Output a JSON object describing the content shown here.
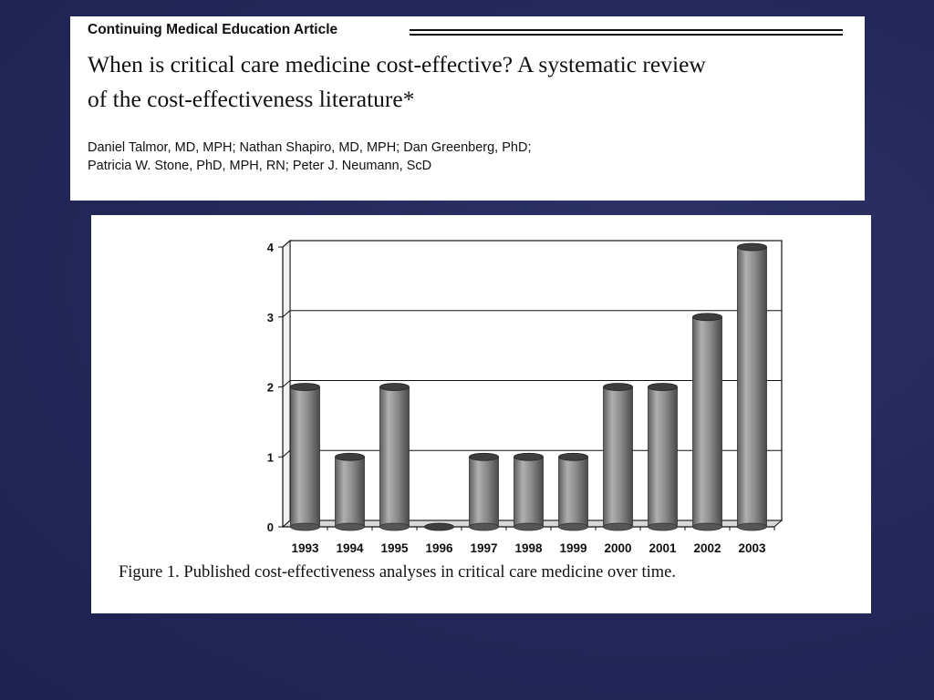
{
  "article": {
    "section_label": "Continuing Medical Education Article",
    "title_line1": "When is critical care medicine cost-effective? A systematic review",
    "title_line2": "of the cost-effectiveness literature*",
    "authors_line1": "Daniel Talmor, MD, MPH; Nathan Shapiro, MD, MPH; Dan Greenberg, PhD;",
    "authors_line2": "Patricia W. Stone, PhD, MPH, RN; Peter J. Neumann, ScD"
  },
  "figure": {
    "caption": "Figure 1. Published cost-effectiveness analyses in critical care medicine over time."
  },
  "chart_data": {
    "type": "bar",
    "title": "",
    "xlabel": "",
    "ylabel": "",
    "categories": [
      "1993",
      "1994",
      "1995",
      "1996",
      "1997",
      "1998",
      "1999",
      "2000",
      "2001",
      "2002",
      "2003"
    ],
    "values": [
      2,
      1,
      2,
      0,
      1,
      1,
      1,
      2,
      2,
      3,
      4
    ],
    "ylim": [
      0,
      4
    ],
    "yticks": [
      "0",
      "1",
      "2",
      "3",
      "4"
    ],
    "grid": true,
    "legend": "none",
    "bar_color": "#8a8a8a",
    "style": "3d-cylinder"
  }
}
